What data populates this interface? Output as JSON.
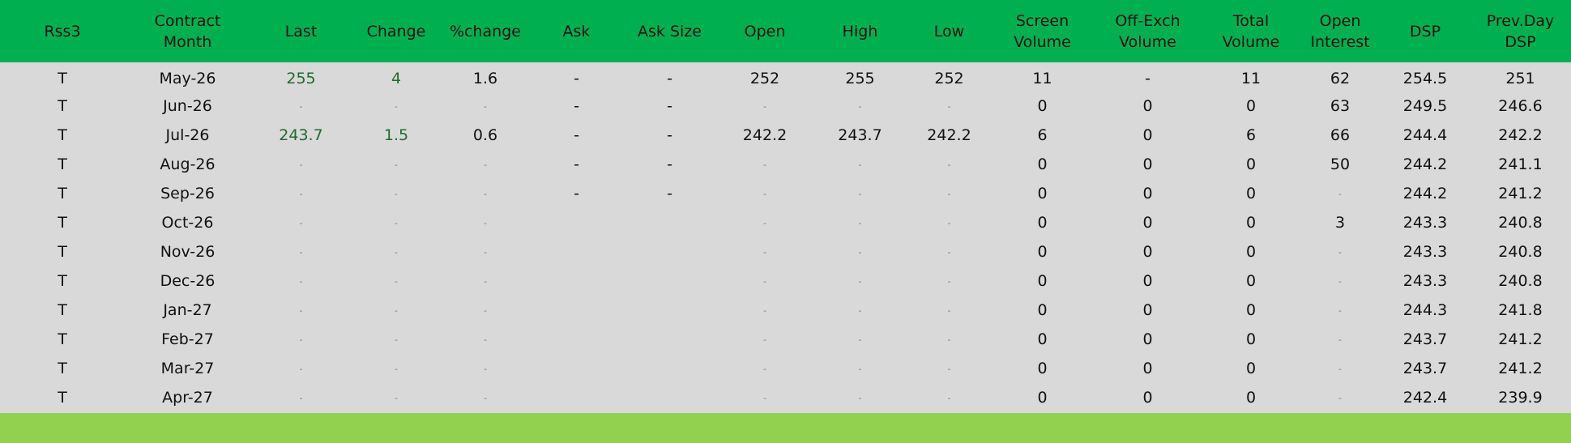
{
  "colors": {
    "header_bg": "#00b050",
    "body_bg": "#d9d9d9",
    "footer_bg": "#92d050",
    "positive": "#1e6b2e"
  },
  "columns": [
    "Rss3",
    "Contract\nMonth",
    "Last",
    "Change",
    "%change",
    "Ask",
    "Ask Size",
    "Open",
    "High",
    "Low",
    "Screen\nVolume",
    "Off-Exch\nVolume",
    "Total\nVolume",
    "Open\nInterest",
    "DSP",
    "Prev.Day\nDSP"
  ],
  "rows": [
    [
      "T",
      "May-26",
      "255",
      "4",
      "1.6",
      "-",
      "-",
      "252",
      "255",
      "252",
      "11",
      "-",
      "11",
      "62",
      "254.5",
      "251"
    ],
    [
      "T",
      "Jun-26",
      "-",
      "-",
      "-",
      "-",
      "-",
      "-",
      "-",
      "-",
      "0",
      "0",
      "0",
      "63",
      "249.5",
      "246.6"
    ],
    [
      "T",
      "Jul-26",
      "243.7",
      "1.5",
      "0.6",
      "-",
      "-",
      "242.2",
      "243.7",
      "242.2",
      "6",
      "0",
      "6",
      "66",
      "244.4",
      "242.2"
    ],
    [
      "T",
      "Aug-26",
      "-",
      "-",
      "-",
      "-",
      "-",
      "-",
      "-",
      "-",
      "0",
      "0",
      "0",
      "50",
      "244.2",
      "241.1"
    ],
    [
      "T",
      "Sep-26",
      "-",
      "-",
      "-",
      "-",
      "-",
      "-",
      "-",
      "-",
      "0",
      "0",
      "0",
      "-",
      "244.2",
      "241.2"
    ],
    [
      "T",
      "Oct-26",
      "-",
      "-",
      "-",
      "",
      "",
      "-",
      "-",
      "-",
      "0",
      "0",
      "0",
      "3",
      "243.3",
      "240.8"
    ],
    [
      "T",
      "Nov-26",
      "-",
      "-",
      "-",
      "",
      "",
      "-",
      "-",
      "-",
      "0",
      "0",
      "0",
      "-",
      "243.3",
      "240.8"
    ],
    [
      "T",
      "Dec-26",
      "-",
      "-",
      "-",
      "",
      "",
      "-",
      "-",
      "-",
      "0",
      "0",
      "0",
      "-",
      "243.3",
      "240.8"
    ],
    [
      "T",
      "Jan-27",
      "-",
      "-",
      "-",
      "",
      "",
      "-",
      "-",
      "-",
      "0",
      "0",
      "0",
      "-",
      "244.3",
      "241.8"
    ],
    [
      "T",
      "Feb-27",
      "-",
      "-",
      "-",
      "",
      "",
      "-",
      "-",
      "-",
      "0",
      "0",
      "0",
      "-",
      "243.7",
      "241.2"
    ],
    [
      "T",
      "Mar-27",
      "-",
      "-",
      "-",
      "",
      "",
      "-",
      "-",
      "-",
      "0",
      "0",
      "0",
      "-",
      "243.7",
      "241.2"
    ],
    [
      "T",
      "Apr-27",
      "-",
      "-",
      "-",
      "",
      "",
      "-",
      "-",
      "-",
      "0",
      "0",
      "0",
      "-",
      "242.4",
      "239.9"
    ]
  ]
}
